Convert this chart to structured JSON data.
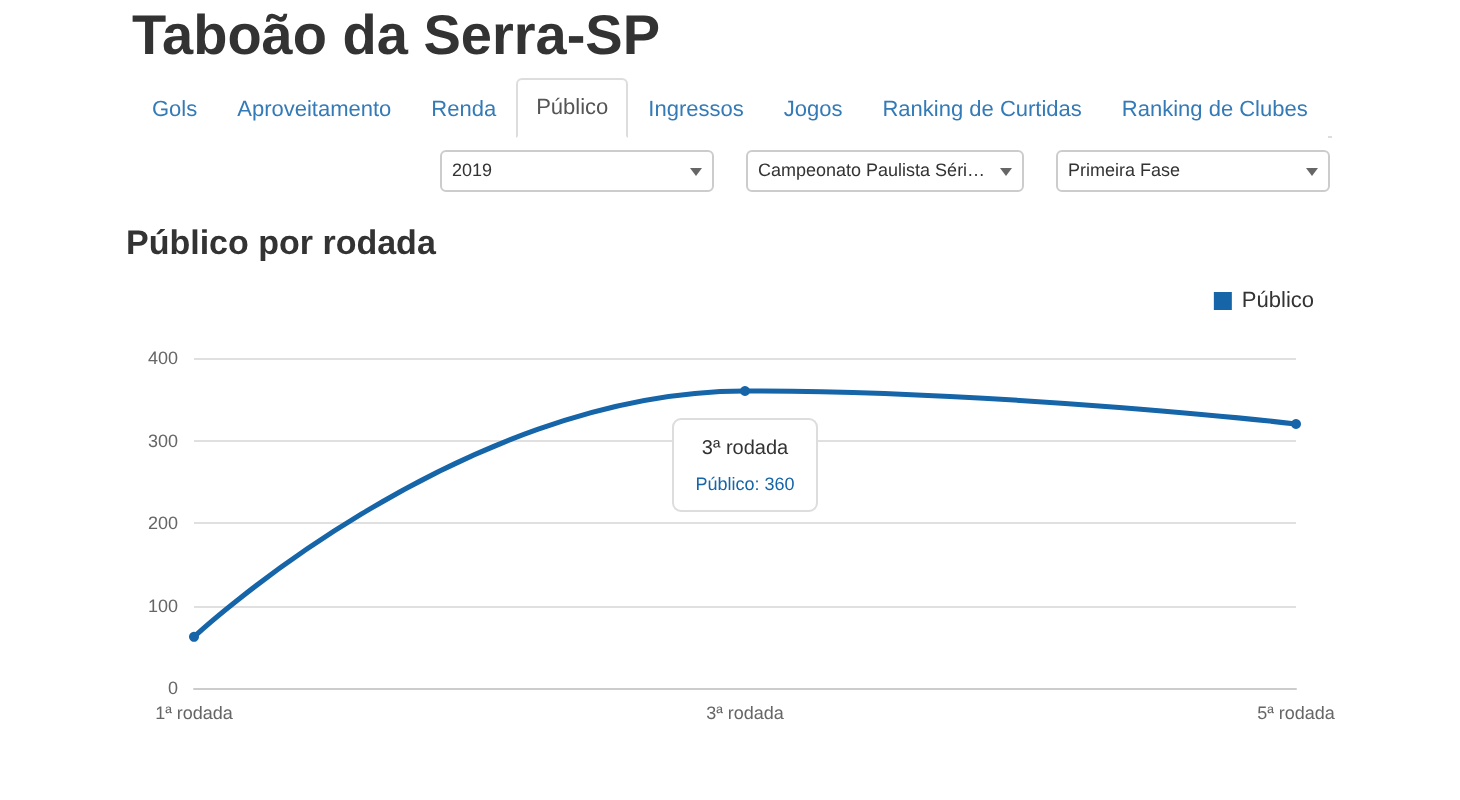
{
  "chart_data": {
    "type": "line",
    "title": "Taboão da Serra-SP",
    "subtitle": "Público por rodada",
    "categories": [
      "1ª rodada",
      "3ª rodada",
      "5ª rodada"
    ],
    "series": [
      {
        "name": "Público",
        "color": "#1565a8",
        "values": [
          62,
          360,
          320
        ]
      }
    ],
    "ylim": [
      0,
      400
    ],
    "yticks": [
      0,
      100,
      200,
      300,
      400
    ],
    "grid": "y",
    "legend": "top right",
    "marker": "circle",
    "line_style": "solid",
    "annotations": [
      "Gols",
      "Aproveitamento",
      "Renda",
      "Público",
      "Ingressos",
      "Jogos",
      "Ranking de Curtidas",
      "Ranking de Clubes",
      "2019",
      "Campeonato Paulista Séri…",
      "Primeira Fase",
      "3ª rodada",
      "Público: 360"
    ]
  }
}
